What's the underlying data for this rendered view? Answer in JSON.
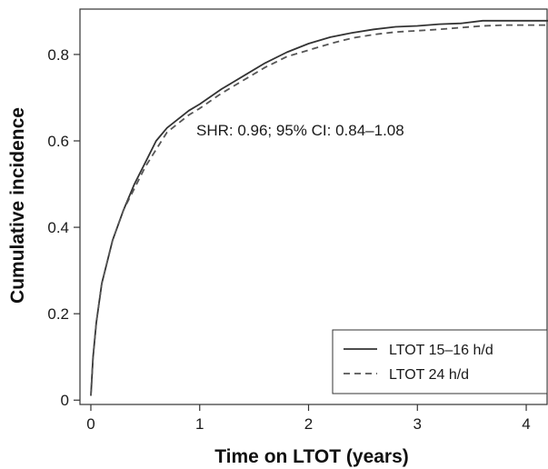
{
  "chart_data": {
    "type": "line",
    "title": "",
    "xlabel": "Time on LTOT (years)",
    "ylabel": "Cumulative incidence",
    "xlim": [
      -0.1,
      4.2
    ],
    "ylim": [
      -0.01,
      0.905
    ],
    "x_ticks": [
      0,
      1,
      2,
      3,
      4
    ],
    "x_tick_labels": [
      "0",
      "1",
      "2",
      "3",
      "4"
    ],
    "y_ticks": [
      0,
      0.2,
      0.4,
      0.6,
      0.8
    ],
    "y_tick_labels": [
      "0",
      "0.2",
      "0.4",
      "0.6",
      "0.8"
    ],
    "grid": false,
    "legend_position": "bottom-right",
    "annotation": "SHR: 0.96; 95% CI: 0.84–1.08",
    "series": [
      {
        "name": "LTOT 15–16 h/d",
        "style": "solid",
        "color": "#333333",
        "x": [
          0,
          0.02,
          0.05,
          0.1,
          0.2,
          0.3,
          0.4,
          0.5,
          0.6,
          0.7,
          0.8,
          0.9,
          1.0,
          1.2,
          1.4,
          1.6,
          1.8,
          2.0,
          2.2,
          2.4,
          2.6,
          2.8,
          3.0,
          3.2,
          3.4,
          3.6,
          3.8,
          4.0,
          4.2
        ],
        "y": [
          0.01,
          0.1,
          0.18,
          0.27,
          0.37,
          0.44,
          0.5,
          0.55,
          0.6,
          0.63,
          0.65,
          0.67,
          0.685,
          0.72,
          0.75,
          0.78,
          0.805,
          0.825,
          0.84,
          0.85,
          0.858,
          0.864,
          0.866,
          0.87,
          0.872,
          0.878,
          0.878,
          0.878,
          0.878
        ]
      },
      {
        "name": "LTOT 24 h/d",
        "style": "dashed",
        "color": "#555555",
        "x": [
          0,
          0.02,
          0.05,
          0.1,
          0.2,
          0.3,
          0.4,
          0.5,
          0.6,
          0.7,
          0.8,
          0.9,
          1.0,
          1.2,
          1.4,
          1.6,
          1.8,
          2.0,
          2.2,
          2.4,
          2.6,
          2.8,
          3.0,
          3.2,
          3.4,
          3.6,
          3.8,
          4.0,
          4.2
        ],
        "y": [
          0.01,
          0.1,
          0.18,
          0.27,
          0.37,
          0.44,
          0.49,
          0.54,
          0.58,
          0.62,
          0.64,
          0.66,
          0.675,
          0.71,
          0.74,
          0.77,
          0.795,
          0.81,
          0.825,
          0.838,
          0.846,
          0.852,
          0.855,
          0.858,
          0.862,
          0.866,
          0.868,
          0.868,
          0.868
        ]
      }
    ]
  }
}
